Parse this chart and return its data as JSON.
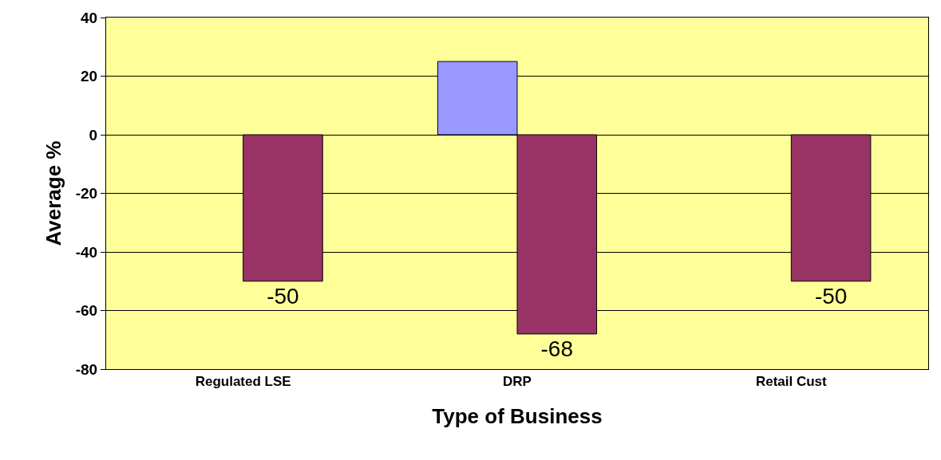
{
  "chart_data": {
    "type": "bar",
    "xlabel": "Type of Business",
    "ylabel": "Average %",
    "categories": [
      "Regulated LSE",
      "DRP",
      "Retail Cust"
    ],
    "series": [
      {
        "color": "#9999ff",
        "values": [
          null,
          25,
          null
        ]
      },
      {
        "color": "#993366",
        "values": [
          -50,
          -68,
          -50
        ],
        "value_labels": [
          "-50",
          "-68",
          "-50"
        ]
      }
    ],
    "ylim": [
      -80,
      40
    ],
    "yticks": [
      -80,
      -60,
      -40,
      -20,
      0,
      20,
      40
    ],
    "grid": "y"
  }
}
